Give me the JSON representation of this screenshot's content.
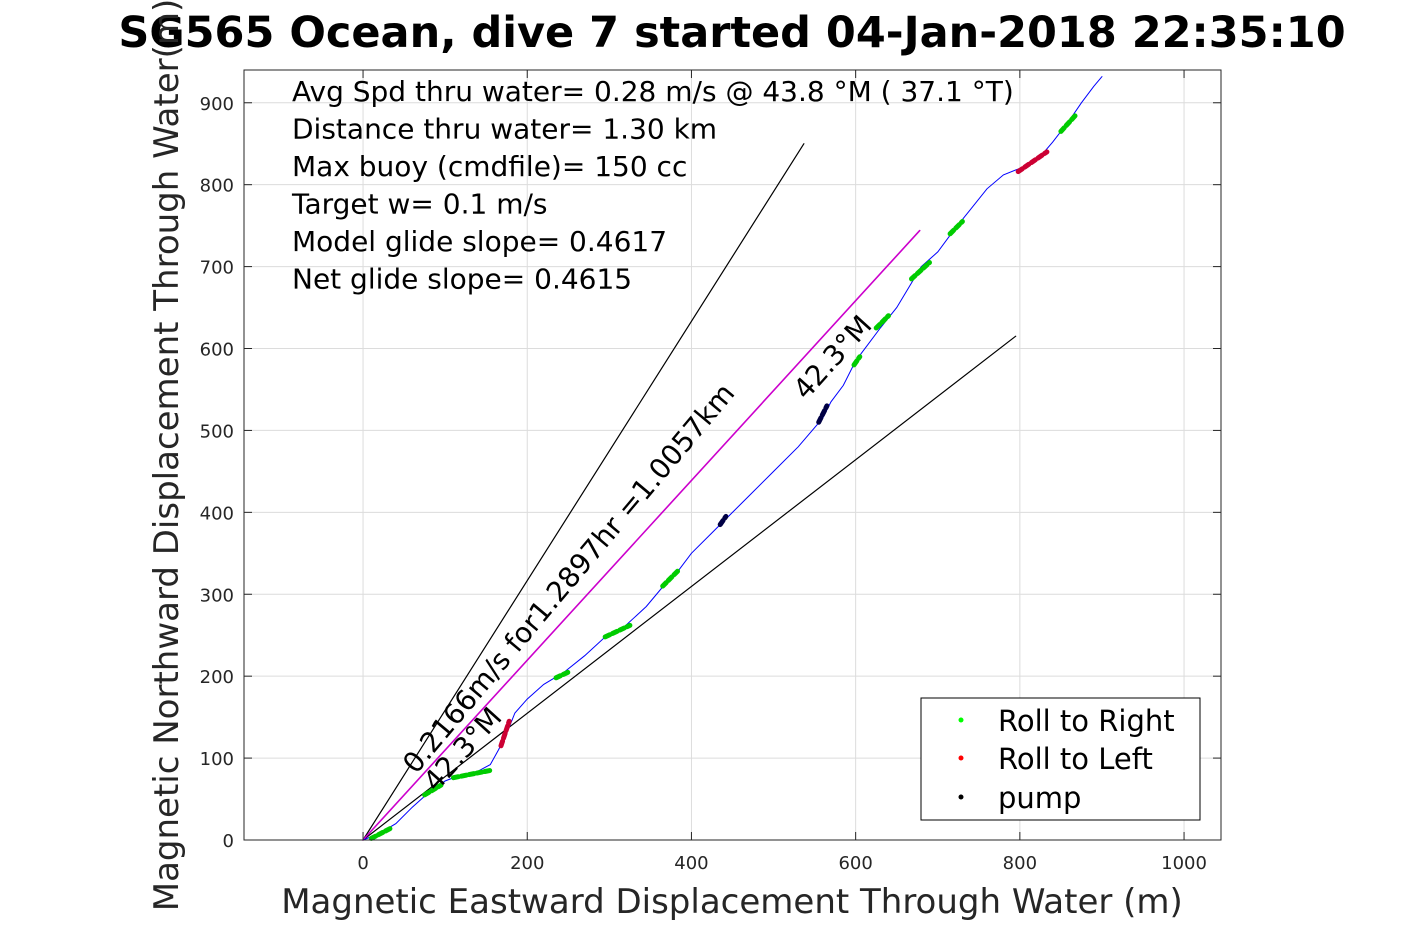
{
  "chart_data": {
    "type": "line",
    "title": "SG565 Ocean, dive 7 started 04-Jan-2018 22:35:10",
    "xlabel": "Magnetic Eastward Displacement Through Water (m)",
    "ylabel": "Magnetic Northward Displacement Through Water(m)",
    "xlim": [
      -145,
      1045
    ],
    "ylim": [
      0,
      940
    ],
    "xticks": [
      0,
      200,
      400,
      600,
      800,
      1000
    ],
    "yticks": [
      0,
      100,
      200,
      300,
      400,
      500,
      600,
      700,
      800,
      900
    ],
    "grid": true,
    "colors": {
      "track": "#0000ff",
      "roll_right": "#00cc00",
      "roll_left": "#cc0033",
      "pump": "#000044",
      "net_line": "#cc00cc",
      "bounds": "#000000"
    },
    "annotations": [
      "Avg Spd thru water=  0.28 m/s @  43.8 °M ( 37.1 °T)",
      "Distance thru water=  1.30 km",
      "Max buoy (cmdfile)= 150 cc",
      "Target w= 0.1 m/s",
      "Model glide slope= 0.4617",
      "Net glide slope= 0.4615"
    ],
    "line_labels": {
      "current": "0.2166m/s for1.2897hr =1.0057km",
      "heading_lower": "42.3°M",
      "heading_upper": "42.3°M"
    },
    "legend": {
      "placement": "bottom-right",
      "entries": [
        "Roll to Right",
        "Roll to Left",
        "pump"
      ]
    },
    "series": [
      {
        "name": "track",
        "points": [
          [
            0,
            0
          ],
          [
            20,
            8
          ],
          [
            40,
            20
          ],
          [
            60,
            40
          ],
          [
            80,
            58
          ],
          [
            100,
            72
          ],
          [
            120,
            80
          ],
          [
            140,
            84
          ],
          [
            155,
            92
          ],
          [
            165,
            110
          ],
          [
            175,
            130
          ],
          [
            185,
            155
          ],
          [
            200,
            172
          ],
          [
            220,
            190
          ],
          [
            245,
            205
          ],
          [
            270,
            225
          ],
          [
            295,
            248
          ],
          [
            320,
            262
          ],
          [
            345,
            285
          ],
          [
            370,
            315
          ],
          [
            385,
            330
          ],
          [
            400,
            350
          ],
          [
            420,
            370
          ],
          [
            440,
            390
          ],
          [
            470,
            420
          ],
          [
            500,
            450
          ],
          [
            530,
            480
          ],
          [
            560,
            515
          ],
          [
            570,
            535
          ],
          [
            585,
            555
          ],
          [
            600,
            585
          ],
          [
            615,
            605
          ],
          [
            630,
            625
          ],
          [
            650,
            650
          ],
          [
            665,
            675
          ],
          [
            680,
            700
          ],
          [
            700,
            718
          ],
          [
            720,
            745
          ],
          [
            740,
            770
          ],
          [
            760,
            795
          ],
          [
            780,
            812
          ],
          [
            800,
            820
          ],
          [
            815,
            826
          ],
          [
            828,
            838
          ],
          [
            840,
            852
          ],
          [
            850,
            865
          ],
          [
            860,
            878
          ],
          [
            875,
            900
          ],
          [
            890,
            920
          ],
          [
            900,
            932
          ]
        ]
      }
    ],
    "markers": {
      "roll_right": [
        [
          [
            10,
            2
          ],
          [
            35,
            15
          ]
        ],
        [
          [
            75,
            55
          ],
          [
            95,
            67
          ]
        ],
        [
          [
            110,
            76
          ],
          [
            155,
            85
          ]
        ],
        [
          [
            235,
            198
          ],
          [
            250,
            205
          ]
        ],
        [
          [
            295,
            248
          ],
          [
            325,
            262
          ]
        ],
        [
          [
            365,
            310
          ],
          [
            385,
            330
          ]
        ],
        [
          [
            598,
            580
          ],
          [
            605,
            590
          ]
        ],
        [
          [
            625,
            625
          ],
          [
            640,
            640
          ]
        ],
        [
          [
            668,
            685
          ],
          [
            690,
            705
          ]
        ],
        [
          [
            715,
            740
          ],
          [
            730,
            755
          ]
        ],
        [
          [
            850,
            865
          ],
          [
            868,
            885
          ]
        ]
      ],
      "roll_left": [
        [
          [
            168,
            115
          ],
          [
            178,
            145
          ]
        ],
        [
          [
            798,
            816
          ],
          [
            833,
            840
          ]
        ]
      ],
      "pump": [
        [
          [
            435,
            385
          ],
          [
            442,
            395
          ]
        ],
        [
          [
            555,
            510
          ],
          [
            565,
            530
          ]
        ]
      ]
    },
    "lines": {
      "net": [
        [
          0,
          0
        ],
        [
          678,
          744
        ]
      ],
      "upper_bound": [
        [
          0,
          0
        ],
        [
          537,
          850
        ]
      ],
      "lower_bound": [
        [
          0,
          0
        ],
        [
          795,
          615
        ]
      ]
    }
  }
}
